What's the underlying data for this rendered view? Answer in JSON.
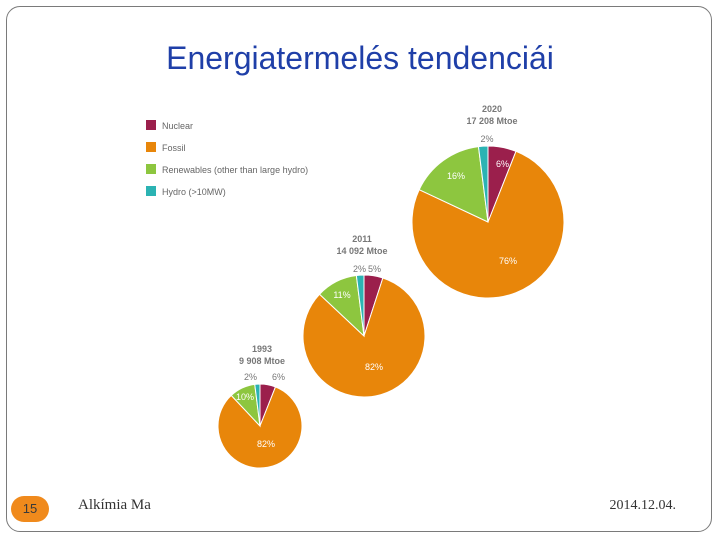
{
  "slide": {
    "title": "Energiatermelés tendenciái",
    "page_number": "15",
    "footer_left": "Alkímia Ma",
    "date": "2014.12.04."
  },
  "chart_data": {
    "type": "pie",
    "title": "",
    "legend": [
      {
        "label": "Nuclear",
        "color": "#9b1f4c"
      },
      {
        "label": "Fossil",
        "color": "#e8860a"
      },
      {
        "label": "Renewables (other than large hydro)",
        "color": "#8dc63f"
      },
      {
        "label": "Hydro (>10MW)",
        "color": "#2bb3b3"
      }
    ],
    "legend_position": "top-left",
    "pies": [
      {
        "year": "1993",
        "total": "9 908 Mtoe",
        "slices": [
          {
            "name": "Nuclear",
            "value": 6,
            "label": "6%",
            "color": "#9b1f4c"
          },
          {
            "name": "Fossil",
            "value": 82,
            "label": "82%",
            "color": "#e8860a"
          },
          {
            "name": "Renewables",
            "value": 10,
            "label": "10%",
            "color": "#8dc63f"
          },
          {
            "name": "Hydro",
            "value": 2,
            "label": "2%",
            "color": "#2bb3b3"
          }
        ]
      },
      {
        "year": "2011",
        "total": "14 092 Mtoe",
        "slices": [
          {
            "name": "Nuclear",
            "value": 5,
            "label": "5%",
            "color": "#9b1f4c"
          },
          {
            "name": "Fossil",
            "value": 82,
            "label": "82%",
            "color": "#e8860a"
          },
          {
            "name": "Renewables",
            "value": 11,
            "label": "11%",
            "color": "#8dc63f"
          },
          {
            "name": "Hydro",
            "value": 2,
            "label": "2%",
            "color": "#2bb3b3"
          }
        ]
      },
      {
        "year": "2020",
        "total": "17 208 Mtoe",
        "slices": [
          {
            "name": "Nuclear",
            "value": 6,
            "label": "6%",
            "color": "#9b1f4c"
          },
          {
            "name": "Fossil",
            "value": 76,
            "label": "76%",
            "color": "#e8860a"
          },
          {
            "name": "Renewables",
            "value": 16,
            "label": "16%",
            "color": "#8dc63f"
          },
          {
            "name": "Hydro",
            "value": 2,
            "label": "2%",
            "color": "#2bb3b3"
          }
        ]
      }
    ]
  }
}
